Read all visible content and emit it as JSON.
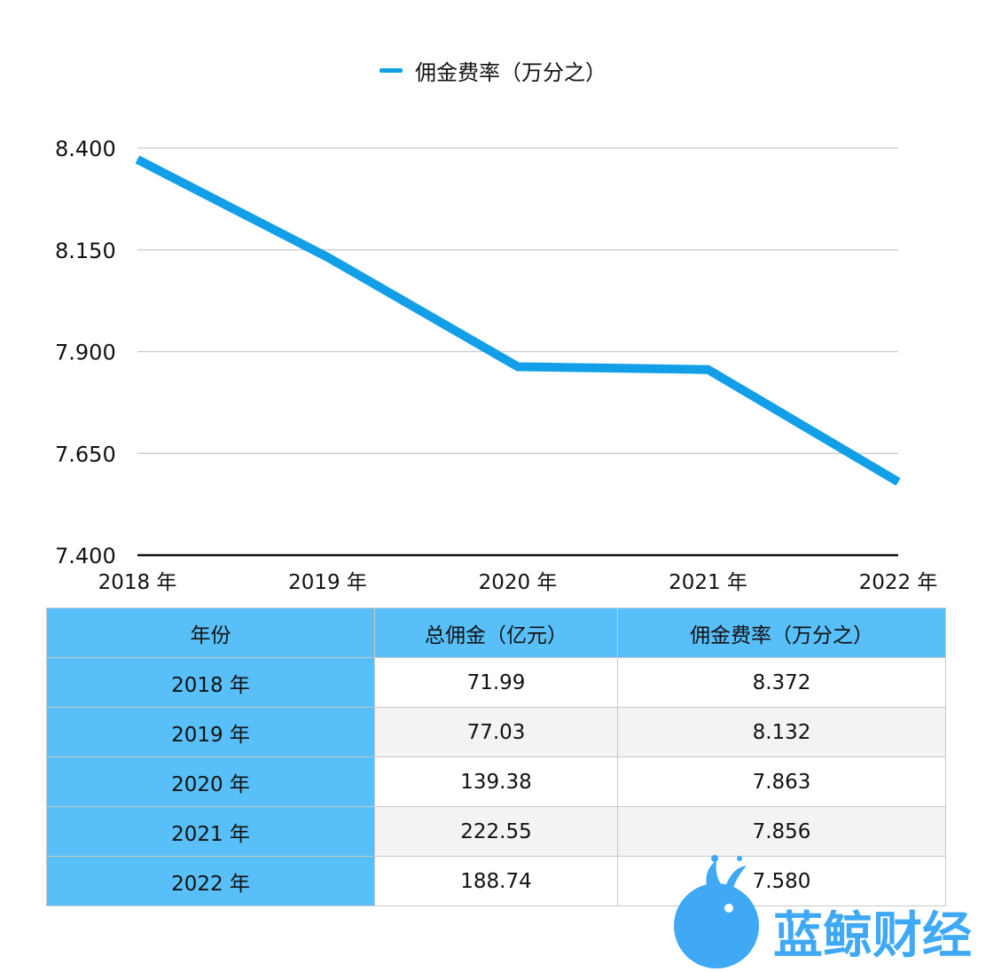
{
  "chart_data": {
    "type": "line",
    "legend_position": "top-center",
    "grid": true,
    "x": [
      "2018 年",
      "2019 年",
      "2020 年",
      "2021 年",
      "2022 年"
    ],
    "series": [
      {
        "name": "佣金费率（万分之）",
        "values": [
          8.372,
          8.132,
          7.863,
          7.856,
          7.58
        ],
        "color": "#129fe8"
      }
    ],
    "ylim": [
      7.4,
      8.4
    ],
    "yticks": [
      "7.400",
      "7.650",
      "7.900",
      "8.150",
      "8.400"
    ],
    "ytick_values": [
      7.4,
      7.65,
      7.9,
      8.15,
      8.4
    ]
  },
  "table": {
    "headers": [
      "年份",
      "总佣金（亿元）",
      "佣金费率（万分之）"
    ],
    "rows": [
      [
        "2018 年",
        "71.99",
        "8.372"
      ],
      [
        "2019 年",
        "77.03",
        "8.132"
      ],
      [
        "2020 年",
        "139.38",
        "7.863"
      ],
      [
        "2021 年",
        "222.55",
        "7.856"
      ],
      [
        "2022 年",
        "188.74",
        "7.580"
      ]
    ]
  },
  "watermark": {
    "text": "蓝鲸财经",
    "icon": "whale-logo-icon",
    "color": "#3fa9f5"
  }
}
